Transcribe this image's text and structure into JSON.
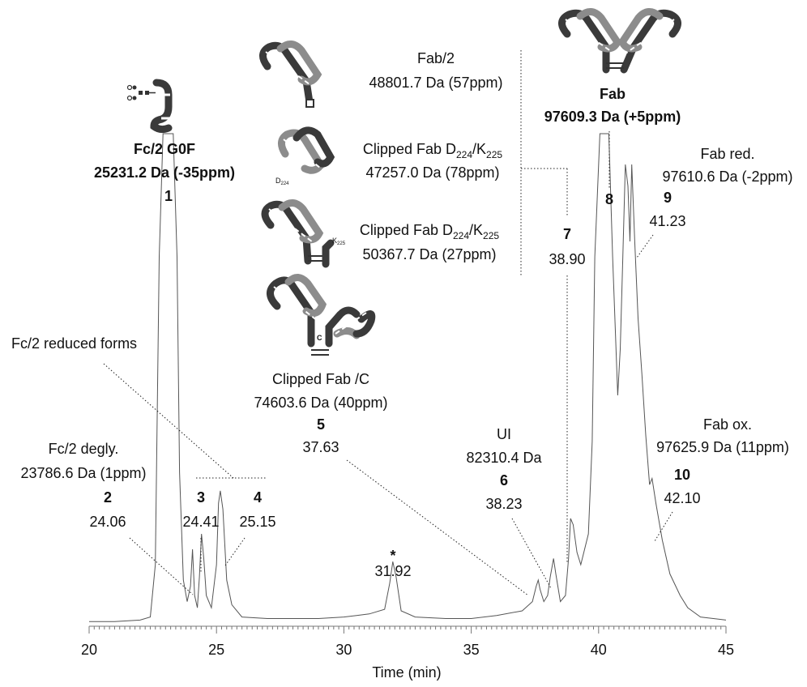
{
  "chart_data": {
    "type": "line",
    "title": "",
    "xlabel": "Time (min)",
    "ylabel": "",
    "xlim": [
      20,
      45
    ],
    "x_ticks": [
      "20",
      "25",
      "30",
      "35",
      "40",
      "45"
    ],
    "grid": false,
    "series": [
      {
        "x": [
          20,
          21,
          22,
          22.4,
          22.6,
          22.75,
          22.9,
          23.3,
          23.45,
          23.55,
          23.7,
          23.85,
          23.98,
          24.06,
          24.14,
          24.25,
          24.33,
          24.41,
          24.5,
          24.6,
          24.8,
          25.0,
          25.08,
          25.15,
          25.25,
          25.4,
          25.6,
          26,
          27,
          28,
          29,
          30,
          30.5,
          31,
          31.6,
          31.8,
          31.92,
          32.05,
          32.25,
          32.8,
          34,
          35,
          36,
          37,
          37.4,
          37.55,
          37.63,
          37.7,
          37.85,
          38.0,
          38.1,
          38.23,
          38.32,
          38.5,
          38.7,
          38.82,
          38.9,
          39.0,
          39.15,
          39.3,
          39.6,
          39.75,
          39.85,
          40.05,
          40.4,
          40.55,
          40.75,
          40.85,
          40.95,
          41.05,
          41.15,
          41.23,
          41.3,
          41.42,
          41.55,
          41.7,
          41.85,
          42.0,
          42.1,
          42.25,
          42.5,
          42.8,
          43.2,
          43.5,
          44,
          45
        ],
        "y": [
          1.5,
          1.5,
          2,
          3,
          20,
          120,
          160,
          160,
          120,
          50,
          15,
          8,
          13,
          25,
          10,
          6,
          16,
          30,
          22,
          10,
          6,
          20,
          40,
          44,
          38,
          15,
          7,
          3,
          2.5,
          2.5,
          2.5,
          3,
          3.5,
          4,
          5.5,
          14,
          21,
          16,
          5,
          3,
          2.5,
          2.5,
          3.5,
          5,
          8,
          13,
          15,
          12,
          8,
          10,
          16,
          22,
          17,
          8,
          10,
          22,
          35,
          33,
          24,
          20,
          30,
          60,
          120,
          160,
          160,
          120,
          75,
          90,
          120,
          150,
          143,
          125,
          150,
          125,
          100,
          82,
          62,
          46,
          48,
          40,
          28,
          17,
          10,
          6,
          3,
          2
        ]
      }
    ],
    "peaks": [
      {
        "id": "1",
        "time": "",
        "label": [
          "Fc/2 G0F",
          "25231.2 Da (-35ppm)"
        ]
      },
      {
        "id": "2",
        "time": "24.06",
        "label": [
          "Fc/2 degly.",
          "23786.6 Da (1ppm)"
        ]
      },
      {
        "id": "3",
        "time": "24.41",
        "label": []
      },
      {
        "id": "4",
        "time": "25.15",
        "label": []
      },
      {
        "id": "*",
        "time": "31.92",
        "label": []
      },
      {
        "id": "5",
        "time": "37.63",
        "label": [
          "Clipped Fab /C",
          "74603.6 Da (40ppm)"
        ]
      },
      {
        "id": "6",
        "time": "38.23",
        "label": [
          "UI",
          "82310.4 Da"
        ]
      },
      {
        "id": "7",
        "time": "38.90",
        "label": []
      },
      {
        "id": "8",
        "time": "",
        "label": [
          "Fab",
          "97609.3 Da (+5ppm)"
        ]
      },
      {
        "id": "9",
        "time": "41.23",
        "label": [
          "Fab red.",
          "97610.6 Da (-2ppm)"
        ]
      },
      {
        "id": "10",
        "time": "42.10",
        "label": [
          "Fab ox.",
          "97625.9 Da (11ppm)"
        ]
      }
    ],
    "annotations": {
      "fc2_reduced": "Fc/2 reduced forms",
      "peak7_species": [
        {
          "name": "Fab/2",
          "mass": "48801.7 Da (57ppm)"
        },
        {
          "name": "Clipped Fab D",
          "sub1": "224",
          "slash": "/K",
          "sub2": "225",
          "mass": "47257.0 Da (78ppm)"
        },
        {
          "name": "Clipped Fab D",
          "sub1": "224",
          "slash": "/K",
          "sub2": "225",
          "mass": "50367.7 Da (27ppm)"
        }
      ],
      "diagram_labels": {
        "d224": "D",
        "d224_sub": "224",
        "k225": "K",
        "k225_sub": "225",
        "c": "C"
      }
    }
  }
}
